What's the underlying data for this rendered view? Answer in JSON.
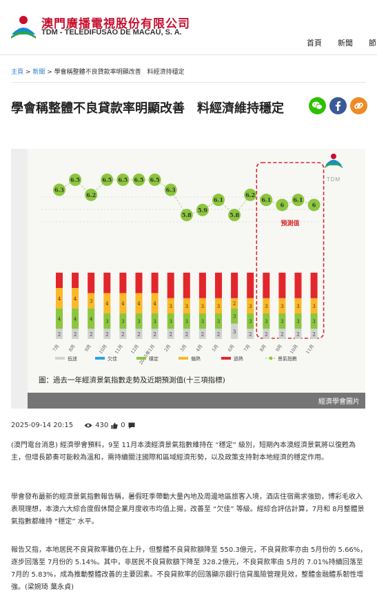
{
  "header": {
    "brand_cn": "澳門廣播電視股份有限公司",
    "brand_en": "TDM - TELEDIFUSÃO DE MACAU, S. A.",
    "nav": [
      "首頁",
      "新聞",
      "節"
    ]
  },
  "breadcrumb": {
    "home": "主頁",
    "sep": ">",
    "section": "新聞",
    "current": "學會稱整體不良貸款率明顯改善　料經濟持穩定"
  },
  "article": {
    "title": "學會稱整體不良貸款率明顯改善　料經濟維持穩定",
    "date": "2025-09-14 20:15",
    "views": "430",
    "likes": "0",
    "paragraphs": [
      "(澳門電台消息) 經濟學會預料，9至 11月本澳經濟景氣指數維持在 “穩定” 級別，短期內本澳經濟景氣將以復甦為主，但增長節奏可能較為溫和，需持續關注國際和區域經濟形勢，以及政策支持對本地經濟的穩定作用。",
      "學會發布最新的經濟景氣指數報告稱，暑假旺季帶動大量內地及周邊地區旅客入境，酒店住宿需求強勁，博彩毛收入表現理想，本澳六大綜合度假休閒企業月度收市均值上揚，改善至 “欠佳” 等級。經綜合評估計算，7月和 8月整體景氣指數都維持 “穩定” 水平。",
      "報告又指，本地居民不良貸款率雖仍在上升，但整體不良貸款額降至 550.3億元，不良貸款率亦由 5月份的 5.66%，逐步回落至 7月份的 5.14%。其中，非居民不良貸款額下降至 328.2億元，不良貸款率由 5月的 7.01%持續回落至 7月的 5.83%，成為推動整體改善的主要因素。不良貸款率的回落顯示銀行信貸風險管理見效，整體金融體系韌性增強。(梁婉琦 葉永貞)"
    ]
  },
  "share": {
    "wechat_color": "#2dc100",
    "facebook_color": "#3b5998",
    "link_color": "#f08a24"
  },
  "figure": {
    "forecast_label": "預測值",
    "watermark": "TDM",
    "caption": "圖：過去一年經濟景氣指數走勢及近期預測值(十三項指標)",
    "credit": "經濟學會圖片"
  },
  "chart_data": {
    "type": "line",
    "categories": [
      "7月",
      "8月",
      "9月",
      "10月",
      "11月",
      "12月",
      "2025年1月",
      "2月",
      "3月",
      "4月",
      "5月",
      "6月",
      "7月",
      "8月",
      "9月",
      "10月",
      "11月"
    ],
    "series": [
      {
        "name": "景氣指數",
        "values": [
          6.3,
          6.5,
          6.2,
          6.5,
          6.5,
          6.5,
          6.5,
          6.3,
          5.8,
          5.9,
          6.1,
          5.8,
          6.2,
          6.1,
          6.0,
          6.1,
          6.0
        ]
      }
    ],
    "forecast_from_index": 13,
    "stacked_bars": {
      "legend": [
        "低迷",
        "欠佳",
        "穩定",
        "偏熱",
        "過熱",
        "景氣指數"
      ],
      "colors": [
        "#d2d2d2",
        "#2ba4e0",
        "#8cc63f",
        "#fbb829",
        "#e3262c"
      ],
      "labels": [
        [
          "2",
          "",
          "4",
          "4",
          ""
        ],
        [
          "2",
          "",
          "4",
          "4",
          ""
        ],
        [
          "2",
          "",
          "4",
          "3",
          ""
        ],
        [
          "2",
          "",
          "3",
          "4",
          ""
        ],
        [
          "2",
          "",
          "3",
          "4",
          ""
        ],
        [
          "2",
          "",
          "3",
          "4",
          ""
        ],
        [
          "2",
          "",
          "3",
          "4",
          ""
        ],
        [
          "2",
          "",
          "3",
          "3",
          ""
        ],
        [
          "2",
          "",
          "3",
          "3",
          ""
        ],
        [
          "2",
          "",
          "3",
          "3",
          ""
        ],
        [
          "2",
          "",
          "3",
          "3",
          ""
        ],
        [
          "3",
          "",
          "3",
          "2",
          ""
        ],
        [
          "2",
          "",
          "3",
          "3",
          ""
        ],
        [
          "2",
          "",
          "3",
          "3",
          ""
        ],
        [
          "2",
          "",
          "3",
          "3",
          ""
        ],
        [
          "2",
          "",
          "3",
          "3",
          ""
        ],
        [
          "2",
          "",
          "3",
          "3",
          ""
        ]
      ],
      "segments": [
        [
          2,
          0,
          4,
          4,
          3
        ],
        [
          2,
          0,
          4,
          4,
          3
        ],
        [
          2,
          0,
          4,
          3,
          4
        ],
        [
          2,
          0,
          3,
          4,
          4
        ],
        [
          2,
          0,
          3,
          4,
          4
        ],
        [
          2,
          0,
          3,
          4,
          4
        ],
        [
          2,
          0,
          3,
          4,
          4
        ],
        [
          2,
          0,
          3,
          3,
          5
        ],
        [
          2,
          0,
          3,
          3,
          5
        ],
        [
          2,
          0,
          3,
          3,
          5
        ],
        [
          2,
          0,
          3,
          3,
          5
        ],
        [
          3,
          0,
          3,
          2,
          5
        ],
        [
          2,
          0,
          3,
          3,
          5
        ],
        [
          2,
          0,
          3,
          3,
          5
        ],
        [
          2,
          0,
          3,
          3,
          5
        ],
        [
          2,
          0,
          3,
          3,
          5
        ],
        [
          2,
          0,
          3,
          3,
          5
        ]
      ]
    },
    "ylim": [
      5.5,
      6.8
    ]
  }
}
